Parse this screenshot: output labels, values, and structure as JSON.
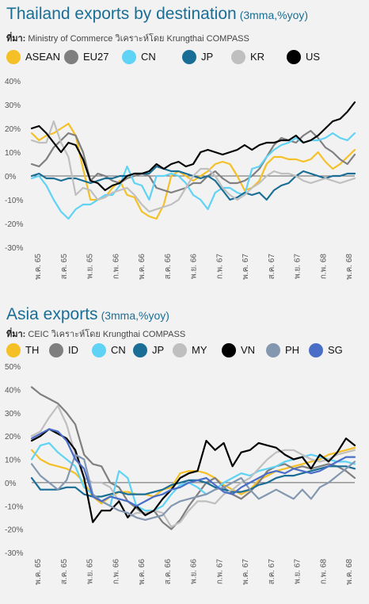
{
  "charts": [
    {
      "title": "Thailand exports by destination",
      "subtitle": "(3mma,%yoy)",
      "source_label": "ที่มา:",
      "source_text": "Ministry of Commerce วิเคราะห์โดย Krungthai COMPASS",
      "chart_data": {
        "type": "line",
        "title": "Thailand exports by destination",
        "ylim": [
          -30,
          40
        ],
        "y_ticks": [
          "40%",
          "30%",
          "20%",
          "10%",
          "0%",
          "-10%",
          "-20%",
          "-30%"
        ],
        "x_ticks": [
          "พ.ค. 65",
          "ส.ค. 65",
          "พ.ย. 65",
          "ก.พ. 66",
          "พ.ค. 66",
          "ส.ค. 66",
          "พ.ย. 66",
          "ก.พ. 67",
          "พ.ค. 67",
          "ส.ค. 67",
          "พ.ย. 67",
          "ก.พ. 68",
          "พ.ค. 68"
        ],
        "legend_position": "top",
        "series": [
          {
            "name": "ASEAN",
            "color": "#f5c026",
            "values": [
              18,
              15,
              17,
              18,
              20,
              22,
              17,
              3,
              -10,
              -10,
              -9,
              -5,
              -2,
              -8,
              -9,
              -15,
              -17,
              -18,
              -12,
              0,
              2,
              0,
              -2,
              0,
              2,
              5,
              6,
              5,
              0,
              -6,
              -5,
              -2,
              5,
              8,
              8,
              7,
              7,
              6,
              7,
              10,
              6,
              3,
              5,
              8,
              11
            ]
          },
          {
            "name": "EU27",
            "color": "#7f7f7f",
            "values": [
              5,
              4,
              7,
              12,
              15,
              18,
              17,
              10,
              -2,
              1,
              0,
              -2,
              -3,
              -1,
              0,
              1,
              0,
              -5,
              -6,
              -7,
              -6,
              -5,
              -3,
              -3,
              0,
              2,
              -1,
              -3,
              -3,
              -2,
              0,
              3,
              8,
              13,
              16,
              15,
              14,
              17,
              19,
              16,
              12,
              10,
              7,
              5,
              9
            ]
          },
          {
            "name": "CN",
            "color": "#5fd3f5",
            "values": [
              -1,
              0,
              -4,
              -10,
              -15,
              -18,
              -14,
              -12,
              -12,
              -10,
              -8,
              -8,
              -4,
              4,
              -3,
              -4,
              -10,
              0,
              0,
              1,
              0,
              -3,
              -8,
              -10,
              -14,
              -7,
              -5,
              -5,
              -7,
              -8,
              3,
              4,
              8,
              11,
              13,
              14,
              16,
              14,
              15,
              15,
              16,
              18,
              16,
              15,
              18
            ]
          },
          {
            "name": "JP",
            "color": "#1a6e96",
            "values": [
              0,
              1,
              -1,
              -1,
              -2,
              -1,
              -1,
              -2,
              -3,
              -2,
              -1,
              -1,
              0,
              0,
              1,
              1,
              1,
              4,
              3,
              2,
              2,
              1,
              0,
              -1,
              0,
              -2,
              -6,
              -10,
              -9,
              -7,
              -8,
              -7,
              -10,
              -6,
              -4,
              -3,
              0,
              2,
              1,
              0,
              -1,
              0,
              0,
              1,
              1
            ]
          },
          {
            "name": "KR",
            "color": "#bfbfbf",
            "values": [
              15,
              14,
              14,
              23,
              14,
              8,
              -8,
              -5,
              -6,
              -10,
              -9,
              -7,
              -6,
              -5,
              -8,
              -12,
              -15,
              -14,
              -13,
              -12,
              -10,
              -5,
              0,
              3,
              3,
              0,
              -5,
              -8,
              -10,
              -8,
              -5,
              -3,
              0,
              2,
              1,
              1,
              0,
              -2,
              -3,
              -2,
              -1,
              -2,
              -3,
              -2,
              -1
            ]
          },
          {
            "name": "US",
            "color": "#000000",
            "values": [
              20,
              21,
              18,
              14,
              10,
              14,
              13,
              7,
              -2,
              -3,
              -6,
              -4,
              -3,
              0,
              1,
              1,
              2,
              5,
              3,
              5,
              6,
              4,
              5,
              10,
              11,
              10,
              9,
              10,
              11,
              13,
              11,
              13,
              14,
              14,
              15,
              15,
              17,
              14,
              15,
              17,
              20,
              23,
              24,
              27,
              31
            ]
          }
        ]
      }
    },
    {
      "title": "Asia exports",
      "subtitle": "(3mma,%yoy)",
      "source_label": "ที่มา:",
      "source_text": "CEIC วิเคราะห์โดย Krungthai COMPASS",
      "chart_data": {
        "type": "line",
        "title": "Asia exports",
        "ylim": [
          -30,
          50
        ],
        "y_ticks": [
          "50%",
          "40%",
          "30%",
          "20%",
          "10%",
          "0%",
          "-10%",
          "-20%",
          "-30%"
        ],
        "x_ticks": [
          "พ.ค. 65",
          "ส.ค. 65",
          "พ.ย. 65",
          "ก.พ. 66",
          "พ.ค. 66",
          "ส.ค. 66",
          "พ.ย. 66",
          "ก.พ. 67",
          "พ.ค. 67",
          "ส.ค. 67",
          "พ.ย. 67",
          "ก.พ. 68",
          "พ.ค. 68"
        ],
        "legend_position": "top",
        "series": [
          {
            "name": "TH",
            "color": "#f5c026",
            "values": [
              14,
              10,
              8,
              7,
              6,
              4,
              0,
              -6,
              -9,
              -6,
              -4,
              -4,
              -5,
              -5,
              -6,
              -3,
              -2,
              4,
              5,
              5,
              4,
              2,
              -1,
              -3,
              -5,
              -3,
              1,
              3,
              5,
              6,
              7,
              8,
              9,
              10,
              12,
              13,
              14,
              15
            ]
          },
          {
            "name": "ID",
            "color": "#7f7f7f",
            "values": [
              41,
              38,
              36,
              34,
              30,
              25,
              12,
              8,
              7,
              0,
              -2,
              -8,
              -11,
              -14,
              -12,
              -17,
              -20,
              -16,
              -10,
              -5,
              0,
              2,
              -2,
              -5,
              -7,
              -4,
              0,
              5,
              7,
              8,
              6,
              7,
              6,
              7,
              8,
              7,
              5,
              2
            ]
          },
          {
            "name": "CN",
            "color": "#5fd3f5",
            "values": [
              10,
              16,
              17,
              13,
              10,
              7,
              -2,
              -5,
              -8,
              -10,
              5,
              2,
              -10,
              -12,
              -12,
              -10,
              -5,
              -1,
              0,
              -2,
              -5,
              -3,
              0,
              2,
              4,
              3,
              5,
              6,
              7,
              9,
              10,
              11,
              12,
              11,
              10,
              9,
              9,
              8
            ]
          },
          {
            "name": "JP",
            "color": "#1a6e96",
            "values": [
              2,
              -3,
              -3,
              -3,
              -2,
              -2,
              -5,
              -6,
              -6,
              -5,
              -4,
              -5,
              -5,
              -5,
              -4,
              -3,
              -1,
              0,
              1,
              1,
              0,
              -2,
              -3,
              -4,
              -4,
              -3,
              -1,
              0,
              2,
              3,
              3,
              4,
              5,
              6,
              7,
              7,
              7,
              6
            ]
          },
          {
            "name": "MY",
            "color": "#bfbfbf",
            "values": [
              20,
              22,
              28,
              33,
              25,
              12,
              2,
              0,
              0,
              -2,
              -8,
              -15,
              -13,
              -13,
              -12,
              -13,
              -19,
              -17,
              -12,
              -8,
              -8,
              -9,
              -5,
              -3,
              0,
              2,
              6,
              10,
              13,
              14,
              14,
              12,
              10,
              9,
              10,
              12,
              13,
              14
            ]
          },
          {
            "name": "VN",
            "color": "#000000",
            "values": [
              18,
              20,
              23,
              21,
              19,
              14,
              2,
              -17,
              -12,
              -12,
              -8,
              -15,
              -10,
              -14,
              -12,
              -7,
              -3,
              2,
              4,
              5,
              18,
              14,
              17,
              7,
              13,
              14,
              17,
              16,
              15,
              12,
              10,
              11,
              6,
              12,
              9,
              13,
              19,
              16
            ]
          },
          {
            "name": "PH",
            "color": "#8497b0",
            "values": [
              8,
              3,
              0,
              -3,
              1,
              12,
              10,
              -5,
              -8,
              -10,
              -12,
              -13,
              -15,
              -16,
              -15,
              -14,
              -10,
              -8,
              -7,
              -6,
              -5,
              -3,
              -2,
              0,
              2,
              -3,
              -7,
              -5,
              -3,
              -5,
              -7,
              -3,
              -7,
              -2,
              0,
              3,
              6,
              9
            ]
          },
          {
            "name": "SG",
            "color": "#4a6ec8",
            "values": [
              19,
              21,
              23,
              22,
              18,
              10,
              6,
              -6,
              -8,
              -6,
              -7,
              -8,
              -10,
              -8,
              -6,
              -5,
              -3,
              -2,
              0,
              1,
              2,
              -1,
              -4,
              -5,
              -2,
              0,
              2,
              4,
              5,
              4,
              6,
              5,
              4,
              5,
              7,
              9,
              11,
              11
            ]
          }
        ]
      }
    }
  ]
}
